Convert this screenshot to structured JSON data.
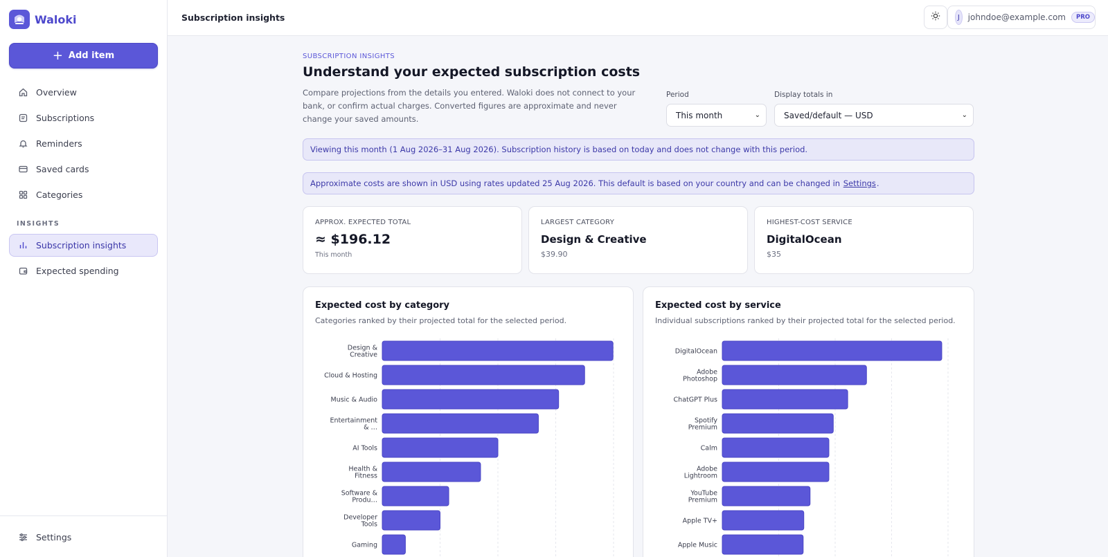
{
  "app": {
    "name": "Waloki"
  },
  "sidebar": {
    "add_label": "Add item",
    "items": [
      {
        "label": "Overview",
        "icon": "home-icon"
      },
      {
        "label": "Subscriptions",
        "icon": "list-icon"
      },
      {
        "label": "Reminders",
        "icon": "bell-icon"
      },
      {
        "label": "Saved cards",
        "icon": "card-icon"
      },
      {
        "label": "Categories",
        "icon": "grid-icon"
      }
    ],
    "insights_label": "INSIGHTS",
    "insights_items": [
      {
        "label": "Subscription insights",
        "icon": "bar-chart-icon",
        "active": true
      },
      {
        "label": "Expected spending",
        "icon": "wallet-icon"
      }
    ],
    "settings_label": "Settings"
  },
  "header": {
    "title": "Subscription insights",
    "user_initial": "J",
    "user_email": "johndoe@example.com",
    "badge": "PRO"
  },
  "page": {
    "eyebrow": "SUBSCRIPTION INSIGHTS",
    "title": "Understand your expected subscription costs",
    "description": "Compare projections from the details you entered. Waloki does not connect to your bank, or confirm actual charges. Converted figures are approximate and never change your saved amounts.",
    "period_label": "Period",
    "period_value": "This month",
    "currency_label": "Display totals in",
    "currency_value": "Saved/default — USD",
    "banner_period": "Viewing this month (1 Aug 2026–31 Aug 2026). Subscription history is based on today and does not change with this period.",
    "banner_currency_prefix": "Approximate costs are shown in USD using rates updated 25 Aug 2026. This default is based on your country and can be changed in",
    "banner_currency_link": "Settings",
    "banner_currency_suffix": "."
  },
  "stats": [
    {
      "label": "APPROX. EXPECTED TOTAL",
      "value": "≈ $196.12",
      "sub": "This month"
    },
    {
      "label": "LARGEST CATEGORY",
      "value": "Design & Creative",
      "sub": "$39.90"
    },
    {
      "label": "HIGHEST-COST SERVICE",
      "value": "DigitalOcean",
      "sub": "$35"
    }
  ],
  "chart_data": [
    {
      "type": "bar",
      "orientation": "horizontal",
      "title": "Expected cost by category",
      "subtitle": "Categories ranked by their projected total for the selected period.",
      "categories": [
        [
          "Design &",
          "Creative"
        ],
        [
          "Cloud & Hosting"
        ],
        [
          "Music & Audio"
        ],
        [
          "Entertainment",
          "& …"
        ],
        [
          "AI Tools"
        ],
        [
          "Health &",
          "Fitness"
        ],
        [
          "Software &",
          "Produ…"
        ],
        [
          "Developer",
          "Tools"
        ],
        [
          "Gaming"
        ]
      ],
      "values": [
        39.9,
        35,
        30.5,
        27,
        20,
        17,
        11.5,
        10,
        4
      ],
      "xlim": [
        0,
        40
      ],
      "grid": true,
      "color": "#5b57d8"
    },
    {
      "type": "bar",
      "orientation": "horizontal",
      "title": "Expected cost by service",
      "subtitle": "Individual subscriptions ranked by their projected total for the selected period.",
      "categories": [
        [
          "DigitalOcean"
        ],
        [
          "Adobe",
          "Photoshop"
        ],
        [
          "ChatGPT Plus"
        ],
        [
          "Spotify",
          "Premium"
        ],
        [
          "Calm"
        ],
        [
          "Adobe",
          "Lightroom"
        ],
        [
          "YouTube",
          "Premium"
        ],
        [
          "Apple TV+"
        ],
        [
          "Apple Music"
        ]
      ],
      "values": [
        35,
        23,
        20,
        17.7,
        17,
        17,
        14,
        13,
        12.9
      ],
      "xlim": [
        0,
        36
      ],
      "grid": true,
      "color": "#5b57d8"
    }
  ]
}
